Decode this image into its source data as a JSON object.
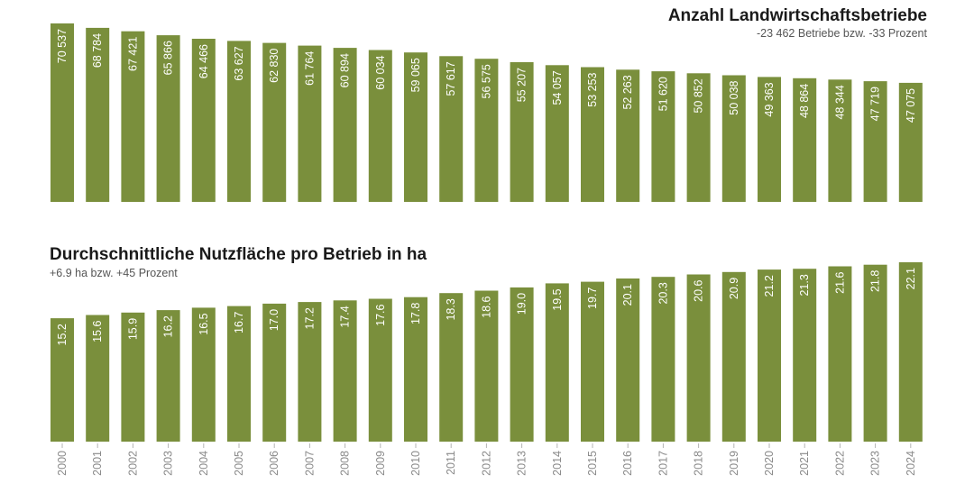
{
  "chart_data": [
    {
      "type": "bar",
      "title": "Anzahl Landwirtschaftsbetriebe",
      "subtitle": "-23 462 Betriebe bzw. -33 Prozent",
      "color": "#7a8f3c",
      "categories": [
        "2000",
        "2001",
        "2002",
        "2003",
        "2004",
        "2005",
        "2006",
        "2007",
        "2008",
        "2009",
        "2010",
        "2011",
        "2012",
        "2013",
        "2014",
        "2015",
        "2016",
        "2017",
        "2018",
        "2019",
        "2020",
        "2021",
        "2022",
        "2023",
        "2024"
      ],
      "values": [
        70537,
        68784,
        67421,
        65866,
        64466,
        63627,
        62830,
        61764,
        60894,
        60034,
        59065,
        57617,
        56575,
        55207,
        54057,
        53253,
        52263,
        51620,
        50852,
        50038,
        49363,
        48864,
        48344,
        47719,
        47075
      ],
      "labels": [
        "70 537",
        "68 784",
        "67 421",
        "65 866",
        "64 466",
        "63 627",
        "62 830",
        "61 764",
        "60 894",
        "60 034",
        "59 065",
        "57 617",
        "56 575",
        "55 207",
        "54 057",
        "53 253",
        "52 263",
        "51 620",
        "50 852",
        "50 038",
        "49 363",
        "48 864",
        "48 344",
        "47 719",
        "47 075"
      ]
    },
    {
      "type": "bar",
      "title": "Durchschnittliche Nutzfläche pro Betrieb in ha",
      "subtitle": "+6.9 ha bzw. +45 Prozent",
      "color": "#7a8f3c",
      "categories": [
        "2000",
        "2001",
        "2002",
        "2003",
        "2004",
        "2005",
        "2006",
        "2007",
        "2008",
        "2009",
        "2010",
        "2011",
        "2012",
        "2013",
        "2014",
        "2015",
        "2016",
        "2017",
        "2018",
        "2019",
        "2020",
        "2021",
        "2022",
        "2023",
        "2024"
      ],
      "values": [
        15.2,
        15.6,
        15.9,
        16.2,
        16.5,
        16.7,
        17.0,
        17.2,
        17.4,
        17.6,
        17.8,
        18.3,
        18.6,
        19.0,
        19.5,
        19.7,
        20.1,
        20.3,
        20.6,
        20.9,
        21.2,
        21.3,
        21.6,
        21.8,
        22.1
      ],
      "labels": [
        "15.2",
        "15.6",
        "15.9",
        "16.2",
        "16.5",
        "16.7",
        "17.0",
        "17.2",
        "17.4",
        "17.6",
        "17.8",
        "18.3",
        "18.6",
        "19.0",
        "19.5",
        "19.7",
        "20.1",
        "20.3",
        "20.6",
        "20.9",
        "21.2",
        "21.3",
        "21.6",
        "21.8",
        "22.1"
      ]
    }
  ]
}
